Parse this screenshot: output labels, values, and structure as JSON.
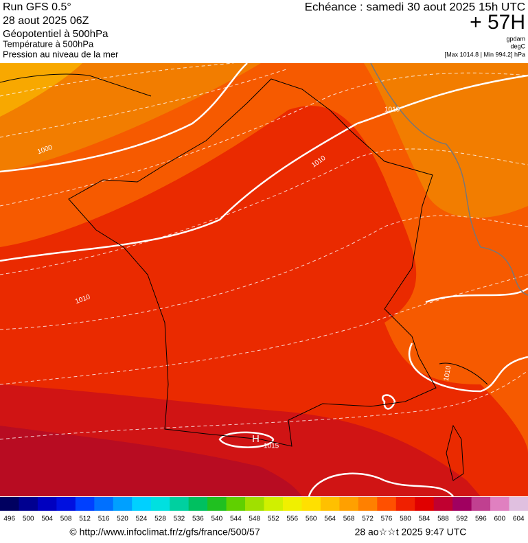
{
  "header": {
    "run": "Run GFS 0.5°",
    "date": "28 aout 2025 06Z",
    "field1": "Géopotentiel à 500hPa",
    "field2": "Température à 500hPa",
    "field3": "Pression au niveau de la mer",
    "echeance": "Echéance : samedi 30 aout 2025 15h UTC",
    "lead": "+ 57H",
    "unit1": "gpdam",
    "unit2": "degC",
    "range": "[Max 1014.8 | Min 994.2] hPa"
  },
  "map": {
    "isobar_labels": [
      "1000",
      "1010",
      "1010",
      "1010",
      "1010",
      "1015"
    ],
    "high": "H"
  },
  "colorbar": {
    "levels": [
      496,
      500,
      504,
      508,
      512,
      516,
      520,
      524,
      528,
      532,
      536,
      540,
      544,
      548,
      552,
      556,
      560,
      564,
      568,
      572,
      576,
      580,
      584,
      588,
      592,
      596,
      600,
      604
    ],
    "colors": [
      "#000060",
      "#000090",
      "#0000c0",
      "#0010e0",
      "#0040ff",
      "#0070ff",
      "#00a0ff",
      "#00d0ff",
      "#00e0e0",
      "#00d0a0",
      "#00c060",
      "#20c020",
      "#60d000",
      "#a0e000",
      "#d0f000",
      "#f0f000",
      "#ffe000",
      "#ffc000",
      "#ffa000",
      "#ff8000",
      "#ff5000",
      "#f02000",
      "#e00000",
      "#c00030",
      "#a00060",
      "#c04090",
      "#e080c0",
      "#e0c0e0"
    ]
  },
  "footer": {
    "url": "© http://www.infoclimat.fr/z/gfs/france/500/57",
    "time": "28 ao☆☆t 2025  9:47 UTC"
  }
}
